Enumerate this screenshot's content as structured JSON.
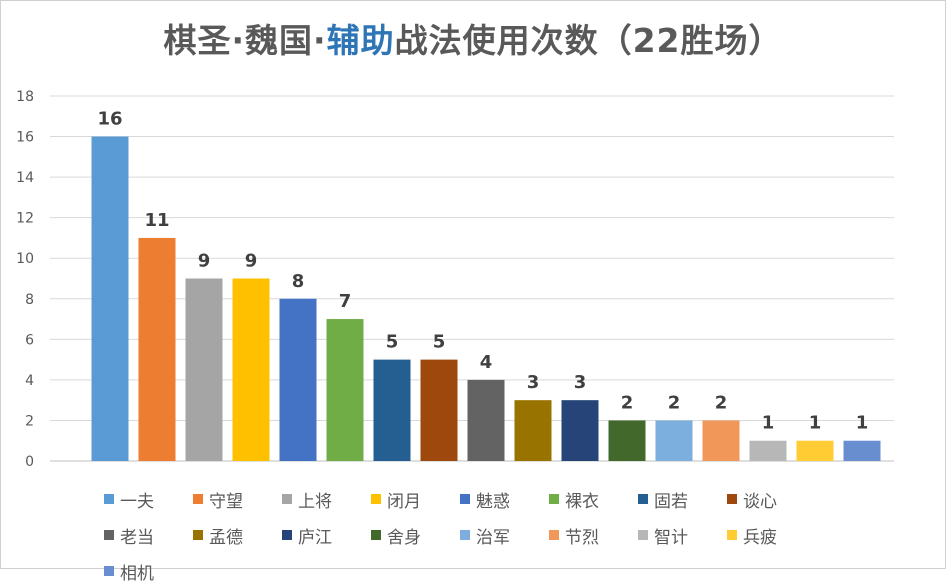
{
  "title": {
    "parts": [
      {
        "text": "棋圣·魏国·",
        "highlight": false
      },
      {
        "text": "辅助",
        "highlight": true
      },
      {
        "text": "战法使用次数（22胜场）",
        "highlight": false
      }
    ],
    "highlight_color": "#2e75b6"
  },
  "chart_data": {
    "type": "bar",
    "title": "棋圣·魏国·辅助战法使用次数（22胜场）",
    "xlabel": "",
    "ylabel": "",
    "ylim": [
      0,
      18
    ],
    "yticks": [
      0,
      2,
      4,
      6,
      8,
      10,
      12,
      14,
      16,
      18
    ],
    "grid": true,
    "legend_position": "bottom",
    "series": [
      {
        "name": "一夫",
        "value": 16,
        "color": "#5b9bd5"
      },
      {
        "name": "守望",
        "value": 11,
        "color": "#ed7d31"
      },
      {
        "name": "上将",
        "value": 9,
        "color": "#a5a5a5"
      },
      {
        "name": "闭月",
        "value": 9,
        "color": "#ffc000"
      },
      {
        "name": "魅惑",
        "value": 8,
        "color": "#4472c4"
      },
      {
        "name": "裸衣",
        "value": 7,
        "color": "#70ad47"
      },
      {
        "name": "固若",
        "value": 5,
        "color": "#255e91"
      },
      {
        "name": "谈心",
        "value": 5,
        "color": "#9e480e"
      },
      {
        "name": "老当",
        "value": 4,
        "color": "#636363"
      },
      {
        "name": "孟德",
        "value": 3,
        "color": "#997300"
      },
      {
        "name": "庐江",
        "value": 3,
        "color": "#264478"
      },
      {
        "name": "舍身",
        "value": 2,
        "color": "#43682b"
      },
      {
        "name": "治军",
        "value": 2,
        "color": "#7cafdd"
      },
      {
        "name": "节烈",
        "value": 2,
        "color": "#f1975a"
      },
      {
        "name": "智计",
        "value": 1,
        "color": "#b7b7b7"
      },
      {
        "name": "兵疲",
        "value": 1,
        "color": "#ffcd33"
      },
      {
        "name": "相机",
        "value": 1,
        "color": "#698ed0"
      }
    ]
  }
}
